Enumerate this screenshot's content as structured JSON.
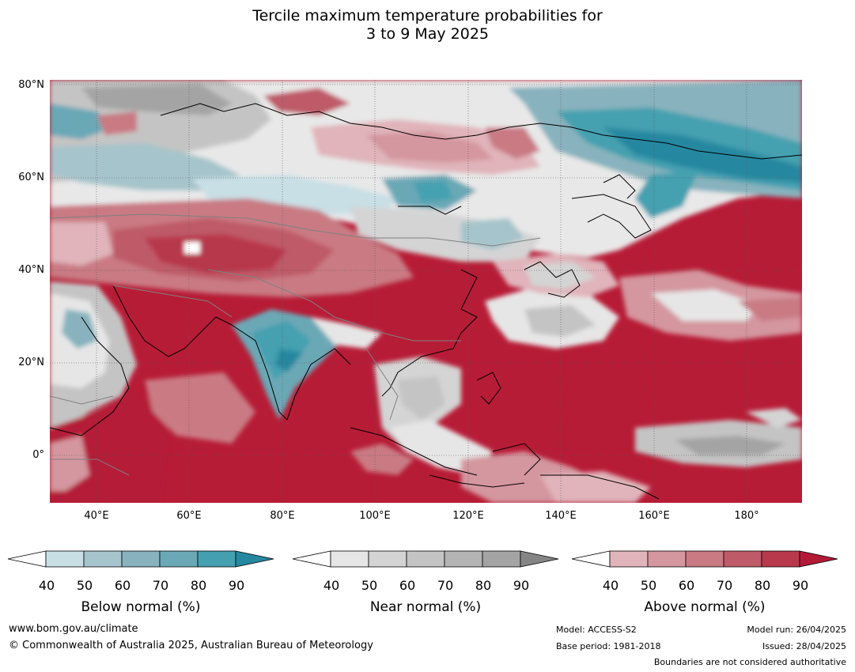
{
  "title_line1": "Tercile maximum temperature probabilities for",
  "title_line2": "3 to 9 May 2025",
  "lat_labels": [
    "80°N",
    "60°N",
    "40°N",
    "20°N",
    "0°"
  ],
  "lon_labels": [
    "40°E",
    "60°E",
    "80°E",
    "100°E",
    "120°E",
    "140°E",
    "160°E",
    "180°"
  ],
  "colorbars": [
    {
      "name": "Below normal (%)",
      "ticks": [
        "40",
        "50",
        "60",
        "70",
        "80",
        "90"
      ],
      "colors": [
        "#ffffff",
        "#c8dfe5",
        "#a6c4cb",
        "#88b2bd",
        "#6aa8b6",
        "#44a0b0",
        "#2588a0"
      ]
    },
    {
      "name": "Near normal (%)",
      "ticks": [
        "40",
        "50",
        "60",
        "70",
        "80",
        "90"
      ],
      "colors": [
        "#ffffff",
        "#e6e6e6",
        "#d4d4d4",
        "#c4c4c4",
        "#b4b4b4",
        "#a4a4a4",
        "#858585"
      ]
    },
    {
      "name": "Above normal (%)",
      "ticks": [
        "40",
        "50",
        "60",
        "70",
        "80",
        "90"
      ],
      "colors": [
        "#ffffff",
        "#e0b4ba",
        "#d4969f",
        "#c97a83",
        "#bf5a68",
        "#b8384c",
        "#b41a38"
      ]
    }
  ],
  "footer": {
    "website": "www.bom.gov.au/climate",
    "copyright": "© Commonwealth of Australia 2025, Australian Bureau of Meteorology",
    "model": "Model: ACCESS-S2",
    "base_period": "Base period: 1981-2018",
    "model_run": "Model run: 26/04/2025",
    "issued": "Issued: 28/04/2025",
    "disclaimer": "Boundaries are not considered authoritative"
  }
}
